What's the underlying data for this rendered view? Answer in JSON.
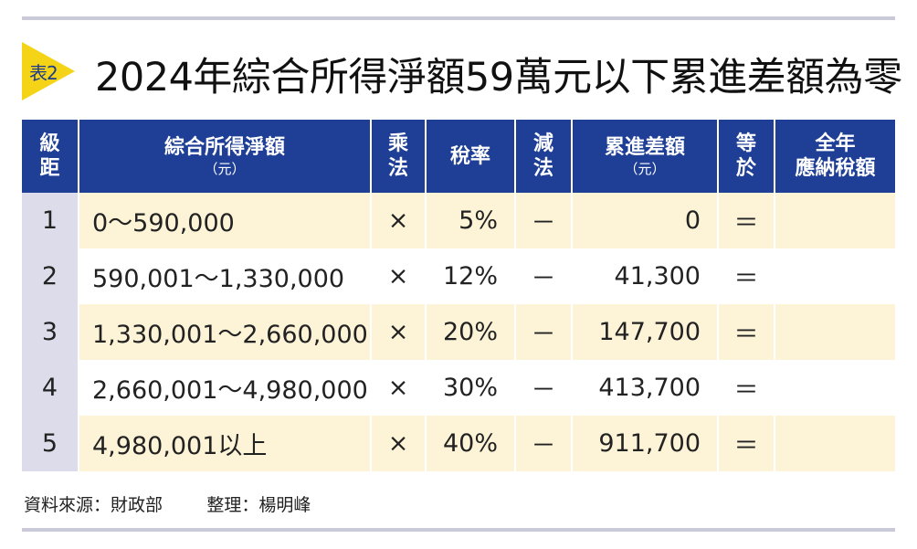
{
  "title": {
    "tag": "表2",
    "text": "2024年綜合所得淨額59萬元以下累進差額為零"
  },
  "table": {
    "headers": [
      {
        "line1": "級",
        "line2": "距",
        "sub": ""
      },
      {
        "line1": "綜合所得淨額",
        "line2": "",
        "sub": "（元）"
      },
      {
        "line1": "乘",
        "line2": "法",
        "sub": ""
      },
      {
        "line1": "稅率",
        "line2": "",
        "sub": ""
      },
      {
        "line1": "減",
        "line2": "法",
        "sub": ""
      },
      {
        "line1": "累進差額",
        "line2": "",
        "sub": "（元）"
      },
      {
        "line1": "等",
        "line2": "於",
        "sub": ""
      },
      {
        "line1": "全年",
        "line2": "應納稅額",
        "sub": ""
      }
    ],
    "rows": [
      {
        "level": "1",
        "range": "0～590,000",
        "mult": "×",
        "rate": "5%",
        "minus": "－",
        "diff": "0",
        "eq": "＝",
        "tax": ""
      },
      {
        "level": "2",
        "range": "590,001～1,330,000",
        "mult": "×",
        "rate": "12%",
        "minus": "－",
        "diff": "41,300",
        "eq": "＝",
        "tax": ""
      },
      {
        "level": "3",
        "range": "1,330,001～2,660,000",
        "mult": "×",
        "rate": "20%",
        "minus": "－",
        "diff": "147,700",
        "eq": "＝",
        "tax": ""
      },
      {
        "level": "4",
        "range": "2,660,001～4,980,000",
        "mult": "×",
        "rate": "30%",
        "minus": "－",
        "diff": "413,700",
        "eq": "＝",
        "tax": ""
      },
      {
        "level": "5",
        "range": "4,980,001以上",
        "mult": "×",
        "rate": "40%",
        "minus": "－",
        "diff": "911,700",
        "eq": "＝",
        "tax": ""
      }
    ]
  },
  "footer": {
    "source": "資料來源：財政部",
    "editor": "整理：楊明峰"
  }
}
